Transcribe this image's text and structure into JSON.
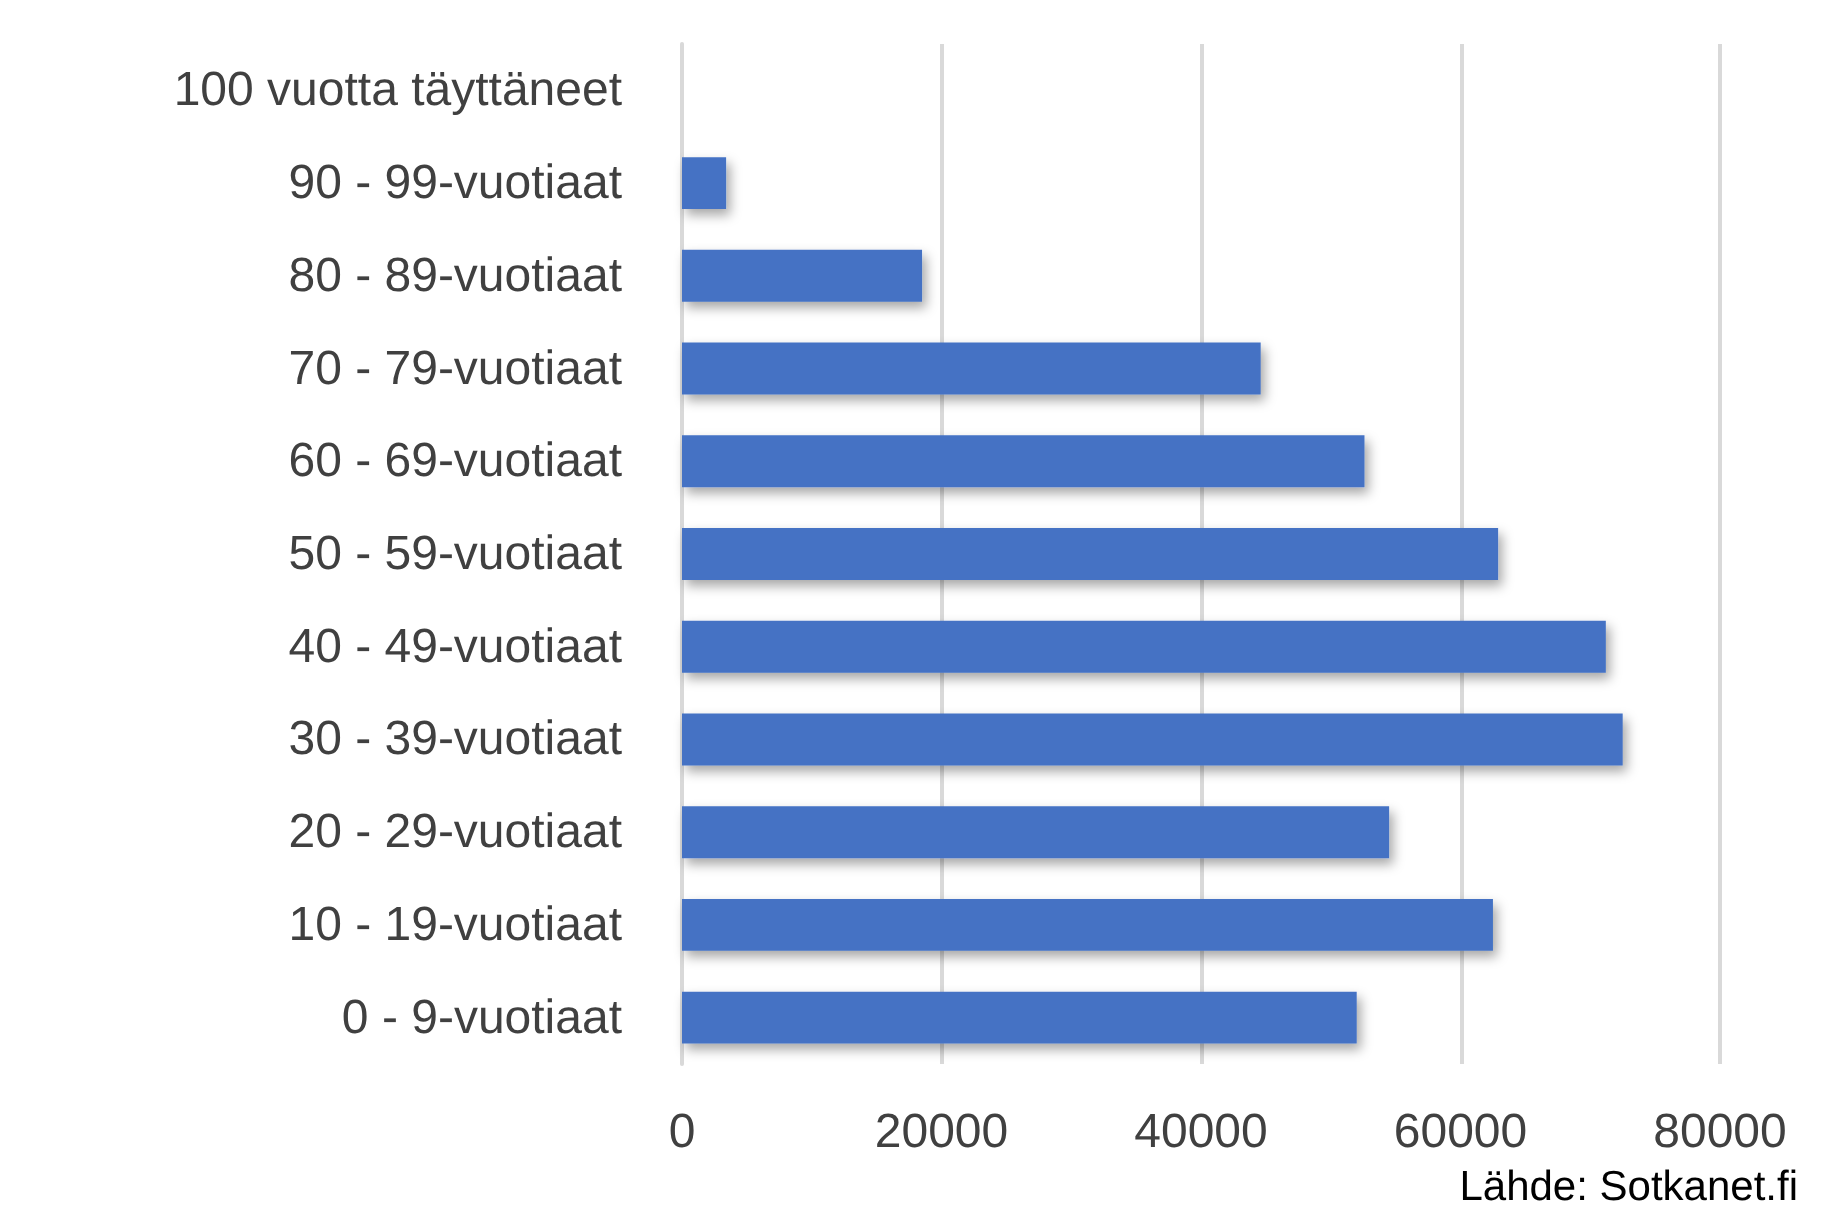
{
  "chart_data": {
    "type": "bar",
    "orientation": "horizontal",
    "categories": [
      "100 vuotta täyttäneet",
      "90 - 99-vuotiaat",
      "80 - 89-vuotiaat",
      "70 - 79-vuotiaat",
      "60 - 69-vuotiaat",
      "50 - 59-vuotiaat",
      "40 - 49-vuotiaat",
      "30 - 39-vuotiaat",
      "20 - 29-vuotiaat",
      "10 - 19-vuotiaat",
      "0 - 9-vuotiaat"
    ],
    "values": [
      0,
      3400,
      18500,
      44600,
      52600,
      62900,
      71200,
      72500,
      54500,
      62500,
      52000
    ],
    "color": "#4472c4",
    "xlim": [
      0,
      80000
    ],
    "xticks": [
      0,
      20000,
      40000,
      60000,
      80000
    ],
    "grid": "x",
    "annotations": [
      "Lähde: Sotkanet.fi"
    ]
  }
}
